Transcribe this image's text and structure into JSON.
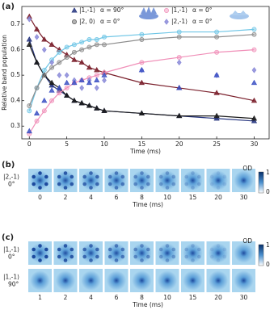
{
  "chart_data": {
    "type": "scatter",
    "panel_label": "(a)",
    "xlabel": "Time (ms)",
    "ylabel": "Relative band population",
    "x": [
      0,
      1,
      2,
      3,
      4,
      5,
      6,
      7,
      8,
      9,
      10,
      15,
      20,
      25,
      30
    ],
    "xlim": [
      -1,
      32
    ],
    "ylim": [
      0.25,
      0.77
    ],
    "xticks": [
      0,
      5,
      10,
      15,
      20,
      25,
      30
    ],
    "yticks": [
      0.3,
      0.4,
      0.5,
      0.6,
      0.7
    ],
    "series": [
      {
        "color": "#26357f",
        "marker": "triangle",
        "fit": true,
        "values": [
          0.64,
          0.55,
          0.5,
          0.46,
          0.44,
          0.42,
          0.4,
          0.39,
          0.38,
          0.37,
          0.36,
          0.35,
          0.34,
          0.33,
          0.32
        ]
      },
      {
        "color": "#7a1f2b",
        "marker": "triangle",
        "fit": true,
        "values": [
          0.73,
          0.68,
          0.64,
          0.62,
          0.6,
          0.58,
          0.56,
          0.55,
          0.53,
          0.52,
          0.51,
          0.47,
          0.45,
          0.43,
          0.4
        ]
      },
      {
        "color": "#1a1a1a",
        "marker": "triangle",
        "fit": true,
        "values": [
          0.62,
          0.55,
          0.5,
          0.47,
          0.45,
          0.42,
          0.4,
          0.39,
          0.38,
          0.37,
          0.36,
          0.35,
          0.34,
          0.34,
          0.33
        ]
      },
      {
        "color": "#6fc6e6",
        "marker": "circle",
        "fit": true,
        "values": [
          0.36,
          0.45,
          0.52,
          0.56,
          0.59,
          0.61,
          0.62,
          0.63,
          0.64,
          0.64,
          0.65,
          0.66,
          0.67,
          0.67,
          0.68
        ]
      },
      {
        "color": "#8c8c8c",
        "marker": "circle",
        "fit": true,
        "values": [
          0.38,
          0.45,
          0.5,
          0.53,
          0.55,
          0.57,
          0.59,
          0.6,
          0.61,
          0.62,
          0.62,
          0.64,
          0.65,
          0.65,
          0.66
        ]
      },
      {
        "color": "#f08fb8",
        "marker": "circle",
        "fit": true,
        "values": [
          0.27,
          0.32,
          0.36,
          0.4,
          0.43,
          0.45,
          0.47,
          0.48,
          0.49,
          0.5,
          0.51,
          0.55,
          0.57,
          0.59,
          0.6
        ]
      },
      {
        "color": "#8a8ad8",
        "marker": "diamond",
        "fit": false,
        "values": [
          0.72,
          0.65,
          0.6,
          0.55,
          0.5,
          0.5,
          0.48,
          0.45,
          0.48,
          0.45,
          0.48,
          0.52,
          0.55,
          0.5,
          0.52
        ]
      },
      {
        "color": "#3d52c4",
        "marker": "triangle",
        "fit": false,
        "values": [
          0.28,
          0.35,
          0.4,
          0.44,
          0.45,
          0.47,
          0.47,
          0.48,
          0.47,
          0.48,
          0.5,
          0.52,
          0.45,
          0.5,
          0.47
        ]
      }
    ],
    "legend": [
      {
        "state": "|1,-1⟩",
        "angle": "α = 90°",
        "marker": "triangle",
        "color": "#26357f"
      },
      {
        "state": "|2, 0⟩",
        "angle": "α = 0°",
        "marker": "circle",
        "color": "#555555"
      },
      {
        "state": "|1,-1⟩",
        "angle": "α = 0°",
        "marker": "circle",
        "color": "#f08fb8"
      },
      {
        "state": "|2,-1⟩",
        "angle": "α = 0°",
        "marker": "diamond",
        "color": "#8a8ad8"
      }
    ]
  },
  "panel_b": {
    "panel_label": "(b)",
    "rows": [
      {
        "state": "|2,-1⟩",
        "angle": "0°"
      }
    ],
    "times": [
      "0",
      "2",
      "4",
      "6",
      "8",
      "10",
      "15",
      "20",
      "30"
    ],
    "xlabel": "Time (ms)",
    "colorbar": {
      "title": "OD",
      "max": 1,
      "min": 0
    }
  },
  "panel_c": {
    "panel_label": "(c)",
    "rows": [
      {
        "state": "|1,-1⟩",
        "angle": "0°"
      },
      {
        "state": "|1,-1⟩",
        "angle": "90°"
      }
    ],
    "times": [
      "1",
      "2",
      "4",
      "6",
      "8",
      "10",
      "15",
      "20",
      "30"
    ],
    "xlabel": "Time (ms)",
    "colorbar": {
      "title": "OD",
      "max": 1,
      "min": 0
    }
  }
}
